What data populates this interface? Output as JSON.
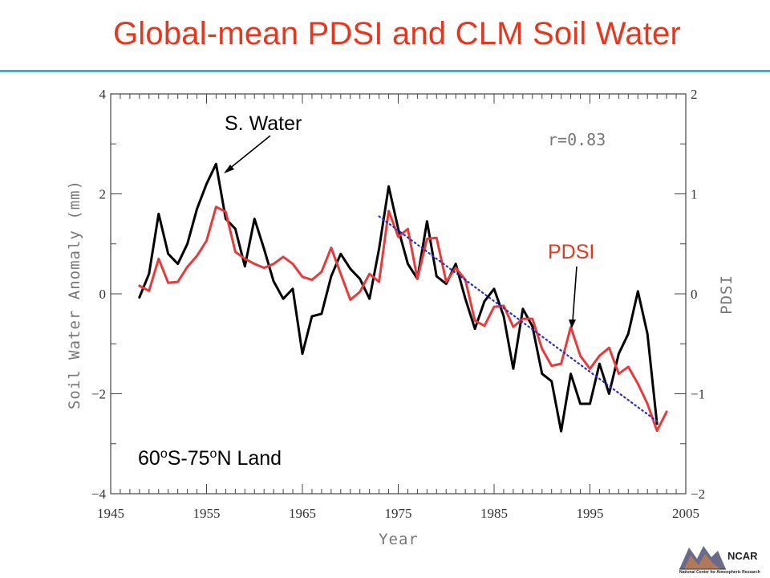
{
  "slide": {
    "title": "Global-mean PDSI and CLM Soil Water"
  },
  "logo": {
    "name": "NCAR",
    "subtitle": "National Center for Atmospheric Research"
  },
  "chart_data": {
    "type": "line",
    "xlabel": "Year",
    "ylabel": "Soil Water Anomaly (mm)",
    "y2label": "PDSI",
    "xlim": [
      1945,
      2005
    ],
    "ylim": [
      -4,
      4
    ],
    "y2lim": [
      -2,
      2
    ],
    "xticks": [
      "1945",
      "1955",
      "1965",
      "1975",
      "1985",
      "1995",
      "2005"
    ],
    "yticks": [
      "−4",
      "−2",
      "0",
      "2",
      "4"
    ],
    "y2ticks": [
      "−2",
      "−1",
      "0",
      "1",
      "2"
    ],
    "annotations": {
      "correlation": "r=0.83",
      "soil_water_label": "S. Water",
      "pdsi_label": "PDSI",
      "region_prefix": "60",
      "region_sup1": "o",
      "region_mid": "S-75",
      "region_sup2": "o",
      "region_suffix": "N Land"
    },
    "series": [
      {
        "name": "S. Water",
        "axis": "left",
        "color": "#000000",
        "x": [
          1948,
          1949,
          1950,
          1951,
          1952,
          1953,
          1954,
          1955,
          1956,
          1957,
          1958,
          1959,
          1960,
          1961,
          1962,
          1963,
          1964,
          1965,
          1966,
          1967,
          1968,
          1969,
          1970,
          1971,
          1972,
          1973,
          1974,
          1975,
          1976,
          1977,
          1978,
          1979,
          1980,
          1981,
          1982,
          1983,
          1984,
          1985,
          1986,
          1987,
          1988,
          1989,
          1990,
          1991,
          1992,
          1993,
          1994,
          1995,
          1996,
          1997,
          1998,
          1999,
          2000,
          2001,
          2002
        ],
        "values": [
          -0.07,
          0.4,
          1.6,
          0.8,
          0.6,
          1.0,
          1.7,
          2.2,
          2.6,
          1.5,
          1.3,
          0.55,
          1.5,
          0.9,
          0.25,
          -0.1,
          0.1,
          -1.2,
          -0.45,
          -0.4,
          0.35,
          0.8,
          0.5,
          0.3,
          -0.1,
          0.9,
          2.15,
          1.3,
          0.6,
          0.3,
          1.45,
          0.35,
          0.2,
          0.6,
          -0.1,
          -0.7,
          -0.15,
          0.1,
          -0.45,
          -1.5,
          -0.3,
          -0.65,
          -1.6,
          -1.75,
          -2.75,
          -1.6,
          -2.2,
          -2.2,
          -1.4,
          -2.0,
          -1.2,
          -0.8,
          0.05,
          -0.8,
          -2.6
        ]
      },
      {
        "name": "PDSI",
        "axis": "right",
        "color": "#e83a3a",
        "x": [
          1948,
          1949,
          1950,
          1951,
          1952,
          1953,
          1954,
          1955,
          1956,
          1957,
          1958,
          1959,
          1960,
          1961,
          1962,
          1963,
          1964,
          1965,
          1966,
          1967,
          1968,
          1969,
          1970,
          1971,
          1972,
          1973,
          1974,
          1975,
          1976,
          1977,
          1978,
          1979,
          1980,
          1981,
          1982,
          1983,
          1984,
          1985,
          1986,
          1987,
          1988,
          1989,
          1990,
          1991,
          1992,
          1993,
          1994,
          1995,
          1996,
          1997,
          1998,
          1999,
          2000,
          2001,
          2002,
          2003
        ],
        "values": [
          0.08,
          0.03,
          0.35,
          0.11,
          0.12,
          0.27,
          0.38,
          0.53,
          0.87,
          0.82,
          0.42,
          0.35,
          0.3,
          0.26,
          0.3,
          0.37,
          0.3,
          0.17,
          0.14,
          0.22,
          0.46,
          0.2,
          -0.06,
          0.02,
          0.2,
          0.12,
          0.83,
          0.57,
          0.65,
          0.15,
          0.55,
          0.56,
          0.12,
          0.26,
          0.14,
          -0.27,
          -0.32,
          -0.13,
          -0.12,
          -0.33,
          -0.25,
          -0.25,
          -0.55,
          -0.72,
          -0.7,
          -0.33,
          -0.62,
          -0.75,
          -0.62,
          -0.54,
          -0.8,
          -0.73,
          -0.9,
          -1.1,
          -1.37,
          -1.18
        ]
      },
      {
        "name": "Trend",
        "axis": "left",
        "color": "#2a2ad0",
        "style": "dotted",
        "x": [
          1973,
          2002
        ],
        "values": [
          1.55,
          -2.55
        ]
      }
    ]
  }
}
